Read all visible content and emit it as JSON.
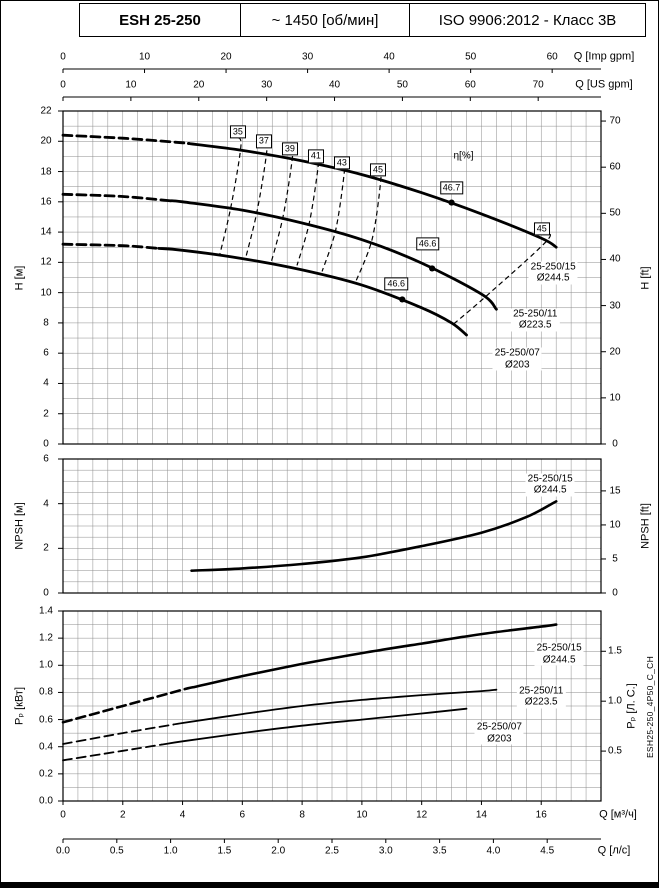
{
  "header": {
    "model": "ESH 25-250",
    "speed": "~ 1450 [об/мин]",
    "standard": "ISO 9906:2012 - Класс 3В"
  },
  "side_code": "ESH25-250_4P50_C_CH",
  "chart_data": {
    "type": "line",
    "flow_range_m3h": [
      0,
      18
    ],
    "flow_axes": [
      {
        "id": "imp-gpm",
        "label": "Q [Imp gpm]",
        "ticks": [
          0,
          10,
          20,
          30,
          40,
          50,
          60
        ],
        "m3h_per_unit": 0.27277,
        "position": "top1"
      },
      {
        "id": "us-gpm",
        "label": "Q [US gpm]",
        "ticks": [
          0,
          10,
          20,
          30,
          40,
          50,
          60,
          70
        ],
        "m3h_per_unit": 0.22712,
        "position": "top2"
      },
      {
        "id": "m3h",
        "label": "Q [м³/ч]",
        "ticks": [
          0,
          2,
          4,
          6,
          8,
          10,
          12,
          14,
          16
        ],
        "m3h_per_unit": 1,
        "position": "bottom1"
      },
      {
        "id": "l-s",
        "label": "Q [л/с]",
        "ticks": [
          "0.0",
          "0.5",
          "1.0",
          "1.5",
          "2.0",
          "2.5",
          "3.0",
          "3.5",
          "4.0",
          "4.5"
        ],
        "m3h_per_unit": 3.6,
        "position": "bottom2"
      }
    ],
    "head_chart": {
      "y_left": {
        "label": "H [м]",
        "min": 0,
        "max": 22,
        "ticks": [
          0,
          2,
          4,
          6,
          8,
          10,
          12,
          14,
          16,
          18,
          20,
          22
        ]
      },
      "y_right": {
        "label": "H [ft]",
        "ticks": [
          0,
          10,
          20,
          30,
          40,
          50,
          60,
          70
        ],
        "m_per_unit": 0.3048
      },
      "series": [
        {
          "name": "25-250/15",
          "impeller": "Ø244.5",
          "dash_until_q": 4.2,
          "width": 2.8,
          "points": [
            [
              0,
              20.4
            ],
            [
              2,
              20.2
            ],
            [
              4,
              19.9
            ],
            [
              6,
              19.4
            ],
            [
              8,
              18.7
            ],
            [
              10,
              17.8
            ],
            [
              12,
              16.6
            ],
            [
              14,
              15.2
            ],
            [
              16,
              13.6
            ],
            [
              16.5,
              13.0
            ]
          ],
          "label_at": [
            16.4,
            11.3
          ]
        },
        {
          "name": "25-250/11",
          "impeller": "Ø223.5",
          "dash_until_q": 3.6,
          "width": 2.8,
          "points": [
            [
              0,
              16.5
            ],
            [
              2,
              16.35
            ],
            [
              4,
              16.0
            ],
            [
              6,
              15.45
            ],
            [
              8,
              14.6
            ],
            [
              10,
              13.5
            ],
            [
              12,
              11.95
            ],
            [
              14,
              9.9
            ],
            [
              14.5,
              8.9
            ]
          ],
          "label_at": [
            15.8,
            8.2
          ]
        },
        {
          "name": "25-250/07",
          "impeller": "Ø203",
          "dash_until_q": 3.2,
          "width": 2.8,
          "points": [
            [
              0,
              13.2
            ],
            [
              2,
              13.1
            ],
            [
              4,
              12.8
            ],
            [
              6,
              12.25
            ],
            [
              8,
              11.5
            ],
            [
              10,
              10.5
            ],
            [
              12,
              9.0
            ],
            [
              13,
              8.0
            ],
            [
              13.5,
              7.2
            ]
          ],
          "label_at": [
            15.2,
            5.6
          ]
        }
      ],
      "efficiency": {
        "axis_label": "η[%]",
        "axis_label_at": [
          13.4,
          19.0
        ],
        "contours": [
          {
            "value": "35",
            "label_at": [
              5.85,
              20.6
            ],
            "points": [
              [
                5.85,
                20.25
              ],
              [
                5.95,
                19.6
              ],
              [
                5.62,
                15.7
              ],
              [
                5.25,
                12.55
              ]
            ]
          },
          {
            "value": "37",
            "label_at": [
              6.72,
              20.0
            ],
            "points": [
              [
                6.72,
                19.7
              ],
              [
                6.82,
                19.35
              ],
              [
                6.5,
                15.45
              ],
              [
                6.12,
                12.35
              ]
            ]
          },
          {
            "value": "39",
            "label_at": [
              7.59,
              19.5
            ],
            "points": [
              [
                7.59,
                19.2
              ],
              [
                7.68,
                19.0
              ],
              [
                7.37,
                15.1
              ],
              [
                6.98,
                12.1
              ]
            ]
          },
          {
            "value": "41",
            "label_at": [
              8.46,
              19.0
            ],
            "points": [
              [
                8.46,
                18.75
              ],
              [
                8.55,
                18.6
              ],
              [
                8.25,
                14.7
              ],
              [
                7.83,
                11.8
              ]
            ]
          },
          {
            "value": "43",
            "label_at": [
              9.33,
              18.55
            ],
            "points": [
              [
                9.33,
                18.3
              ],
              [
                9.42,
                18.15
              ],
              [
                9.13,
                14.2
              ],
              [
                8.67,
                11.4
              ]
            ]
          },
          {
            "value": "45",
            "label_at": [
              10.54,
              18.1
            ],
            "points": [
              [
                10.54,
                17.85
              ],
              [
                10.64,
                17.6
              ],
              [
                10.35,
                13.6
              ],
              [
                9.8,
                10.75
              ]
            ]
          },
          {
            "value": "45",
            "label_at": [
              16.02,
              14.2
            ],
            "points": [
              [
                16.02,
                13.9
              ],
              [
                16.2,
                13.45
              ],
              [
                14.15,
                9.75
              ],
              [
                13.05,
                7.9
              ]
            ]
          }
        ],
        "best_points": [
          {
            "value": "46.7",
            "dot": [
              13.0,
              15.95
            ],
            "label_at": [
              13.0,
              16.9
            ]
          },
          {
            "value": "46.6",
            "dot": [
              12.35,
              11.6
            ],
            "label_at": [
              12.2,
              13.2
            ]
          },
          {
            "value": "46.6",
            "dot": [
              11.35,
              9.55
            ],
            "label_at": [
              11.15,
              10.6
            ]
          }
        ]
      }
    },
    "npsh_chart": {
      "y_left": {
        "label": "NPSH [м]",
        "min": 0,
        "max": 6,
        "ticks": [
          0,
          2,
          4,
          6
        ]
      },
      "y_right": {
        "label": "NPSH [ft]",
        "ticks": [
          0,
          5,
          10,
          15
        ],
        "m_per_unit": 0.3048
      },
      "series": [
        {
          "name": "25-250/15",
          "impeller": "Ø244.5",
          "width": 2.6,
          "points": [
            [
              4.3,
              1.0
            ],
            [
              6,
              1.1
            ],
            [
              8,
              1.3
            ],
            [
              10,
              1.6
            ],
            [
              12,
              2.1
            ],
            [
              14,
              2.7
            ],
            [
              15.5,
              3.4
            ],
            [
              16.5,
              4.1
            ]
          ],
          "label_at": [
            16.3,
            4.85
          ]
        }
      ]
    },
    "power_chart": {
      "y_left": {
        "label": "Pₚ [кВт]",
        "min": 0,
        "max": 1.4,
        "ticks": [
          "0.0",
          "0.2",
          "0.4",
          "0.6",
          "0.8",
          "1.0",
          "1.2",
          "1.4"
        ]
      },
      "y_right": {
        "label": "Pₚ [Л. С.]",
        "ticks": [
          "0.5",
          "1.0",
          "1.5"
        ],
        "kw_per_unit": 0.7355
      },
      "series": [
        {
          "name": "25-250/15",
          "impeller": "Ø244.5",
          "dash_until_q": 4.4,
          "width": 2.6,
          "points": [
            [
              0,
              0.58
            ],
            [
              2,
              0.7
            ],
            [
              4,
              0.82
            ],
            [
              6,
              0.92
            ],
            [
              8,
              1.01
            ],
            [
              10,
              1.09
            ],
            [
              12,
              1.16
            ],
            [
              14,
              1.23
            ],
            [
              16,
              1.285
            ],
            [
              16.5,
              1.3
            ]
          ],
          "label_at": [
            16.6,
            1.08
          ]
        },
        {
          "name": "25-250/11",
          "impeller": "Ø223.5",
          "dash_until_q": 3.7,
          "width": 1.8,
          "points": [
            [
              0,
              0.42
            ],
            [
              2,
              0.5
            ],
            [
              4,
              0.575
            ],
            [
              6,
              0.64
            ],
            [
              8,
              0.7
            ],
            [
              10,
              0.745
            ],
            [
              12,
              0.78
            ],
            [
              14,
              0.81
            ],
            [
              14.5,
              0.82
            ]
          ],
          "label_at": [
            16.0,
            0.77
          ]
        },
        {
          "name": "25-250/07",
          "impeller": "Ø203",
          "dash_until_q": 3.3,
          "width": 1.8,
          "points": [
            [
              0,
              0.3
            ],
            [
              2,
              0.37
            ],
            [
              4,
              0.44
            ],
            [
              6,
              0.5
            ],
            [
              8,
              0.555
            ],
            [
              10,
              0.6
            ],
            [
              12,
              0.645
            ],
            [
              13.5,
              0.68
            ]
          ],
          "label_at": [
            14.6,
            0.5
          ]
        }
      ]
    }
  }
}
